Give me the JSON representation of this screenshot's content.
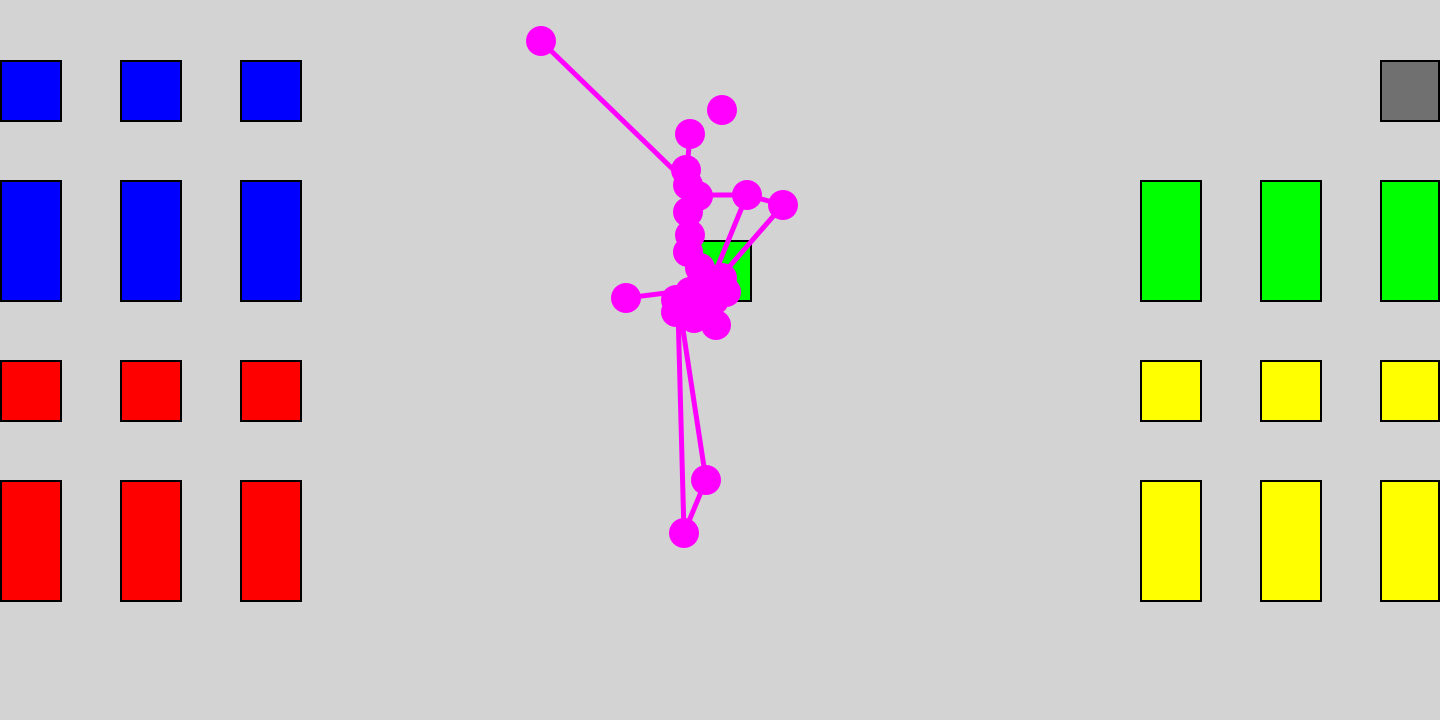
{
  "palette": {
    "background": "#d3d3d3",
    "team_blue": "#0000ff",
    "team_red": "#ff0000",
    "team_green": "#00ff00",
    "team_yellow": "#ffff00",
    "neutral_gray": "#707070",
    "figure_magenta": "#ff00ff",
    "outline": "#000000"
  },
  "groups": {
    "blue_short": {
      "color": "team_blue",
      "count": 3
    },
    "blue_tall": {
      "color": "team_blue",
      "count": 3
    },
    "red_short": {
      "color": "team_red",
      "count": 3
    },
    "red_tall": {
      "color": "team_red",
      "count": 3
    },
    "green_tall": {
      "color": "team_green",
      "count": 3
    },
    "yellow_short": {
      "color": "team_yellow",
      "count": 3
    },
    "yellow_tall": {
      "color": "team_yellow",
      "count": 3
    },
    "gray_short": {
      "color": "neutral_gray",
      "count": 1
    },
    "green_target": {
      "color": "team_green",
      "count": 1
    }
  }
}
